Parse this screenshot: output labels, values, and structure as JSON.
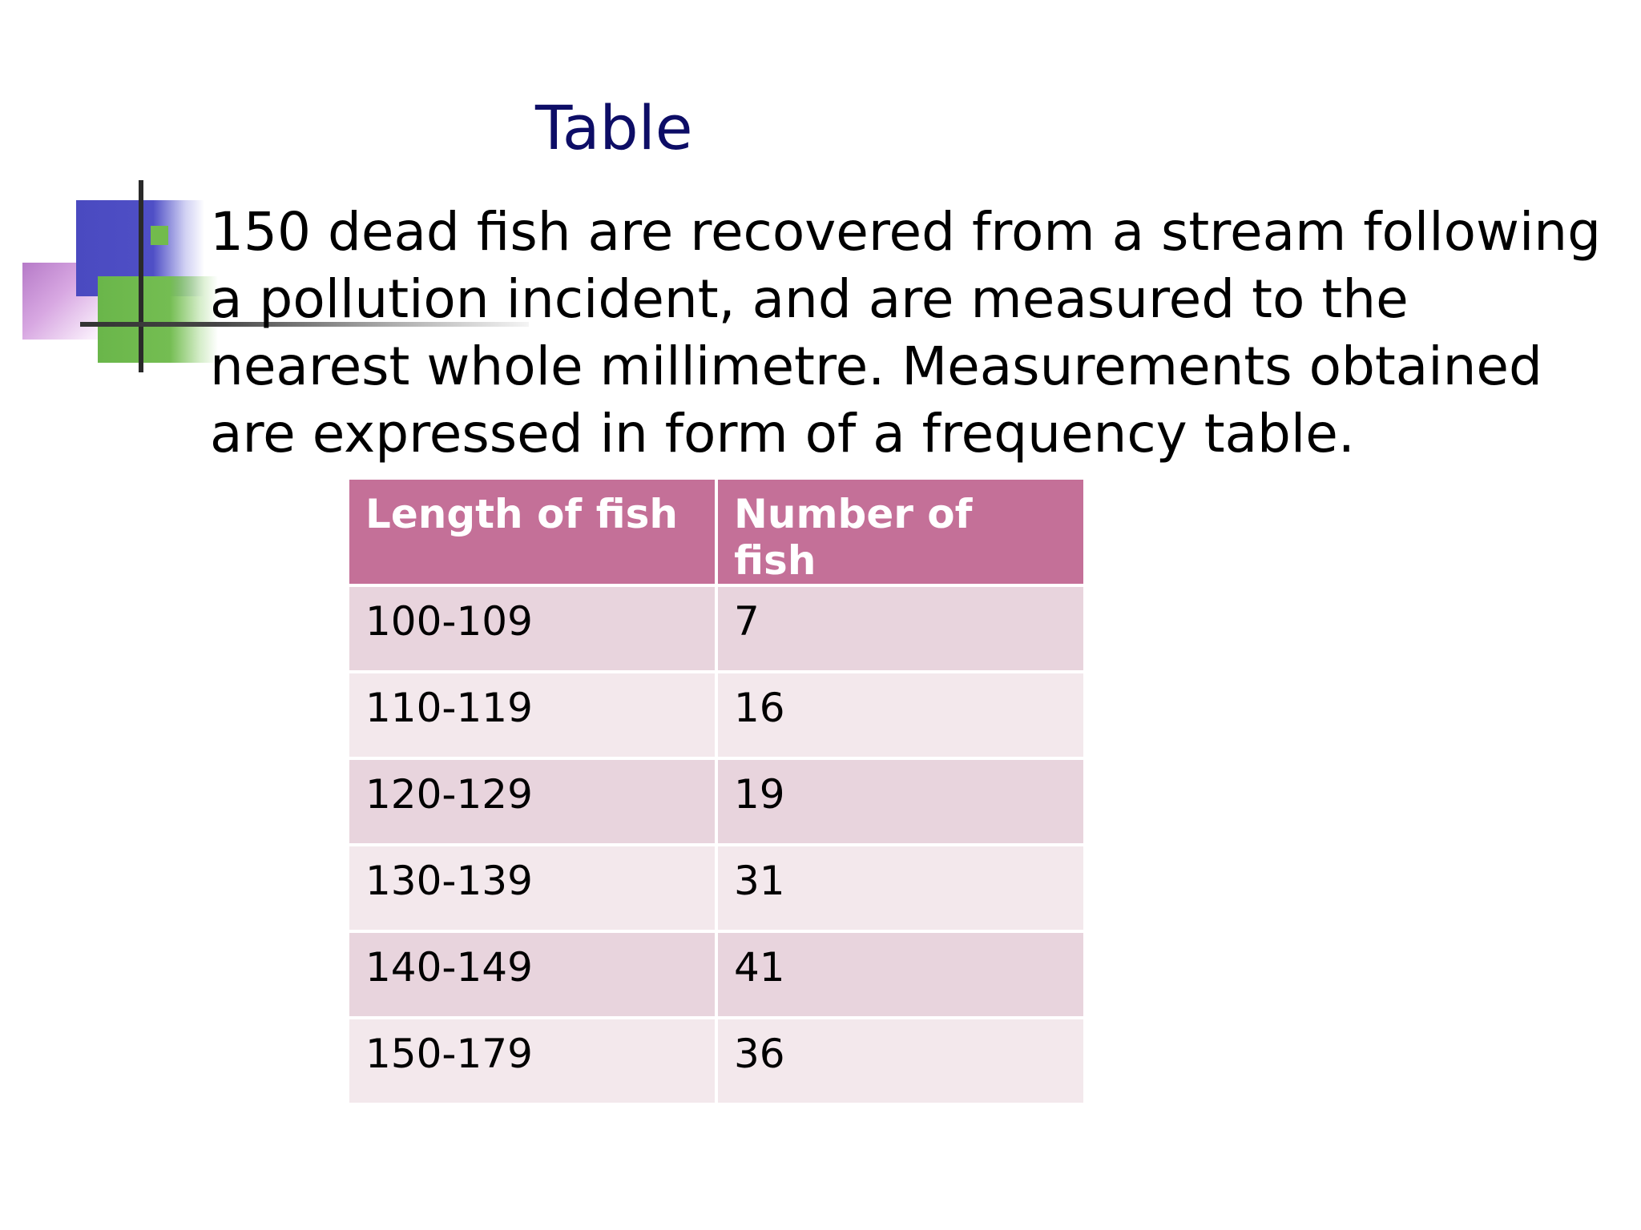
{
  "slide": {
    "title": "Table",
    "body": "150 dead fish are recovered from a stream following a pollution incident, and are measured to the nearest whole millimetre. Measurements obtained are expressed in form of a frequency table."
  },
  "table": {
    "headers": [
      "Length of fish",
      "Number of fish"
    ],
    "rows": [
      [
        "100-109",
        "7"
      ],
      [
        "110-119",
        "16"
      ],
      [
        "120-129",
        "19"
      ],
      [
        "130-139",
        "31"
      ],
      [
        "140-149",
        "41"
      ],
      [
        "150-179",
        "36"
      ]
    ]
  },
  "colors": {
    "title": "#0d0d66",
    "header_bg": "#c47098",
    "row_odd_bg": "#e8d4dd",
    "row_even_bg": "#f3e8ec"
  }
}
